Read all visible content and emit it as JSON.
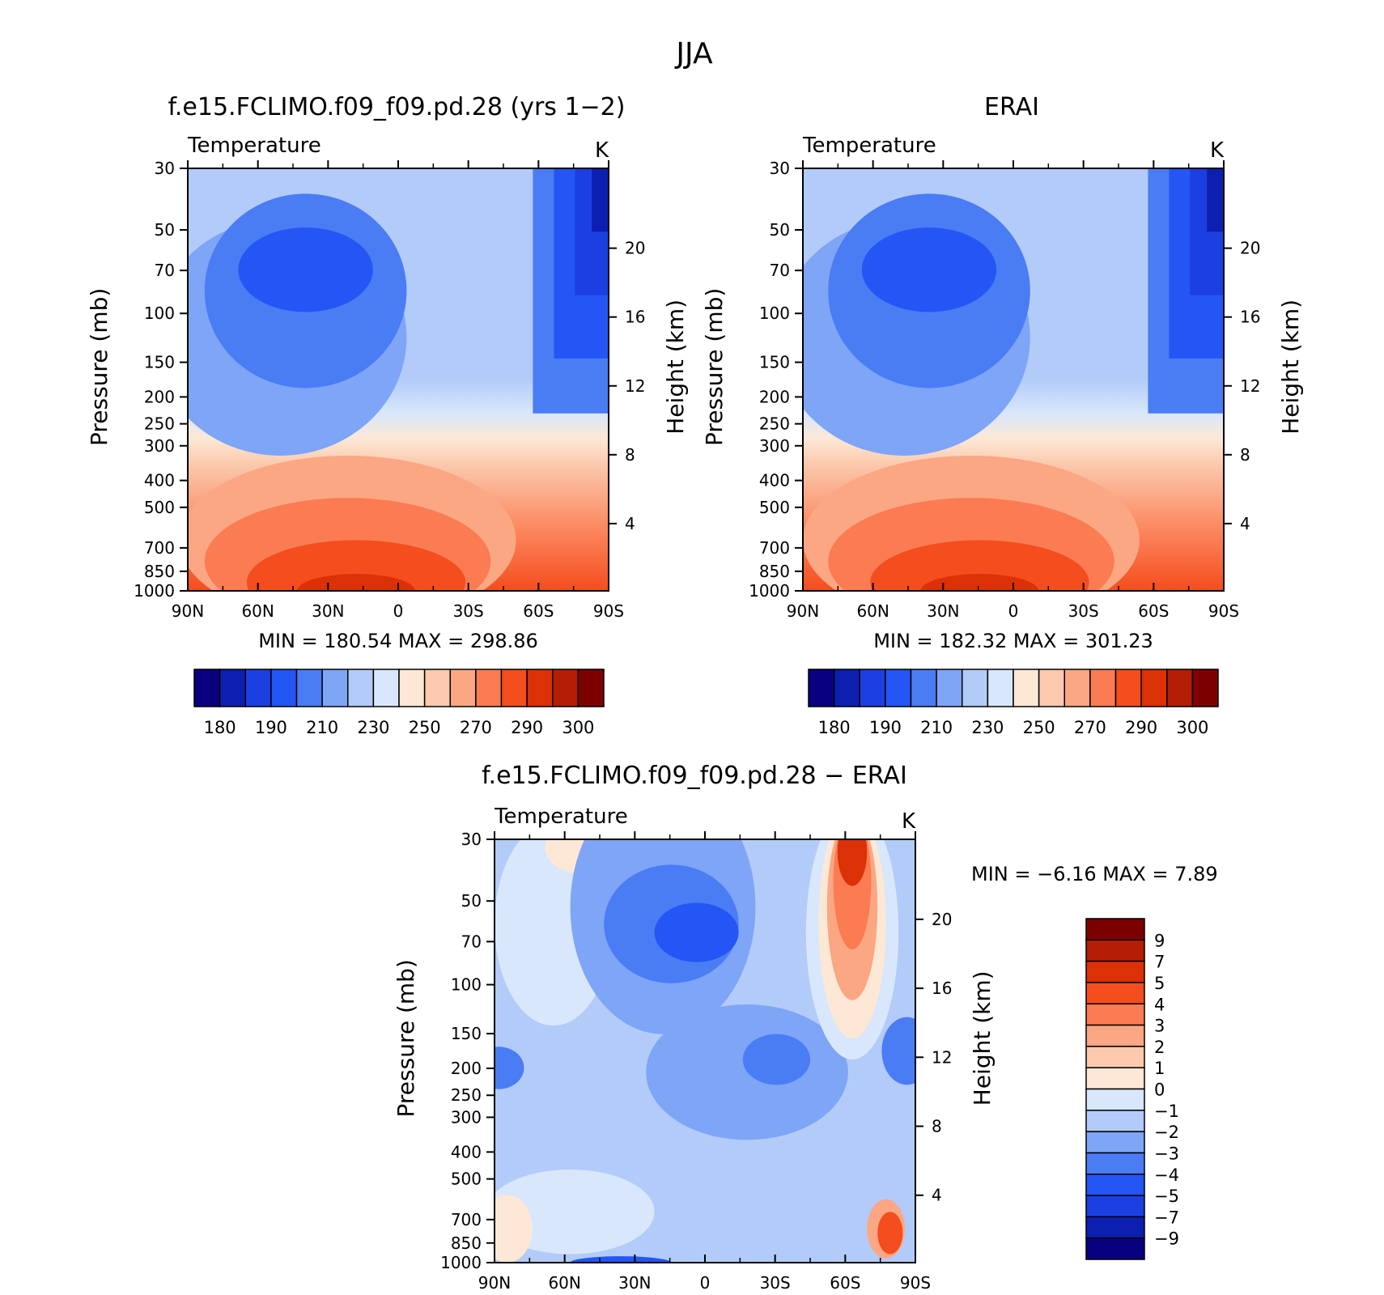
{
  "figure_title": "JJA",
  "chart_data": [
    {
      "type": "heatmap",
      "title": "f.e15.FCLIMO.f09_f09.pd.28 (yrs 1−2)",
      "left_label": "Temperature",
      "units": "K",
      "ylabel": "Pressure (mb)",
      "ylabel_right": "Height (km)",
      "x_ticks": [
        "90N",
        "60N",
        "30N",
        "0",
        "30S",
        "60S",
        "90S"
      ],
      "xlim": [
        90,
        -90
      ],
      "y_ticks": [
        30,
        50,
        70,
        100,
        150,
        200,
        250,
        300,
        400,
        500,
        700,
        850,
        1000
      ],
      "ylim": [
        1000,
        30
      ],
      "y_scale": "log",
      "height_ticks": [
        4,
        8,
        12,
        16,
        20
      ],
      "min_label": "MIN =",
      "min_value": "180.54",
      "max_label": "MAX =",
      "max_value": "298.86",
      "levels": [
        180,
        185,
        190,
        200,
        210,
        220,
        230,
        240,
        250,
        260,
        270,
        280,
        290,
        295,
        300
      ],
      "colorbar_labels": [
        "180",
        "190",
        "210",
        "230",
        "250",
        "270",
        "290",
        "300"
      ],
      "colorbar_orientation": "horizontal"
    },
    {
      "type": "heatmap",
      "title": "ERAI",
      "left_label": "Temperature",
      "units": "K",
      "ylabel": "Pressure (mb)",
      "ylabel_right": "Height (km)",
      "x_ticks": [
        "90N",
        "60N",
        "30N",
        "0",
        "30S",
        "60S",
        "90S"
      ],
      "xlim": [
        90,
        -90
      ],
      "y_ticks": [
        30,
        50,
        70,
        100,
        150,
        200,
        250,
        300,
        400,
        500,
        700,
        850,
        1000
      ],
      "ylim": [
        1000,
        30
      ],
      "y_scale": "log",
      "height_ticks": [
        4,
        8,
        12,
        16,
        20
      ],
      "min_label": "MIN =",
      "min_value": "182.32",
      "max_label": "MAX =",
      "max_value": "301.23",
      "levels": [
        180,
        185,
        190,
        200,
        210,
        220,
        230,
        240,
        250,
        260,
        270,
        280,
        290,
        295,
        300
      ],
      "colorbar_labels": [
        "180",
        "190",
        "210",
        "230",
        "250",
        "270",
        "290",
        "300"
      ],
      "colorbar_orientation": "horizontal"
    },
    {
      "type": "heatmap",
      "title": "f.e15.FCLIMO.f09_f09.pd.28 − ERAI",
      "left_label": "Temperature",
      "units": "K",
      "ylabel": "Pressure (mb)",
      "ylabel_right": "Height (km)",
      "x_ticks": [
        "90N",
        "60N",
        "30N",
        "0",
        "30S",
        "60S",
        "90S"
      ],
      "xlim": [
        90,
        -90
      ],
      "y_ticks": [
        30,
        50,
        70,
        100,
        150,
        200,
        250,
        300,
        400,
        500,
        700,
        850,
        1000
      ],
      "ylim": [
        1000,
        30
      ],
      "y_scale": "log",
      "height_ticks": [
        4,
        8,
        12,
        16,
        20
      ],
      "min_label": "MIN =",
      "min_value": "−6.16",
      "max_label": "MAX =",
      "max_value": "7.89",
      "levels": [
        -9,
        -7,
        -5,
        -4,
        -3,
        -2,
        -1,
        0,
        1,
        2,
        3,
        4,
        5,
        7,
        9
      ],
      "colorbar_labels": [
        "9",
        "7",
        "5",
        "4",
        "3",
        "2",
        "1",
        "0",
        "−1",
        "−2",
        "−3",
        "−4",
        "−5",
        "−7",
        "−9"
      ],
      "colorbar_orientation": "vertical"
    }
  ],
  "colors": {
    "palette": [
      "#08007f",
      "#0d1fb0",
      "#1b3fe0",
      "#2356f5",
      "#4a7cf4",
      "#7ea5f6",
      "#b2cbf9",
      "#d8e7fb",
      "#fde8d6",
      "#fbc9ad",
      "#fba783",
      "#fb7c52",
      "#f44d1e",
      "#dc3007",
      "#b31e05",
      "#7d0000"
    ]
  }
}
